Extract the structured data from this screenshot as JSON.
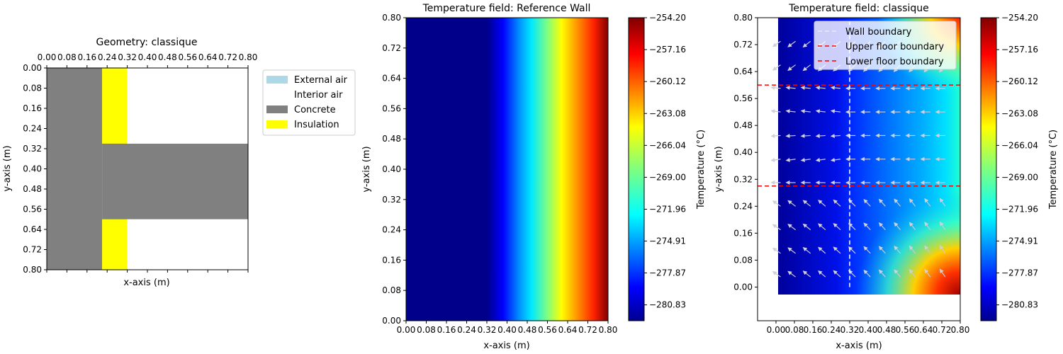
{
  "chart_data": [
    {
      "type": "heatmap",
      "title": "Geometry: classique",
      "xlabel": "x-axis (m)",
      "ylabel": "y-axis (m)",
      "xlim": [
        0.0,
        0.8
      ],
      "ylim": [
        0.8,
        0.0
      ],
      "y_inverted": true,
      "x_ticks_position": "top",
      "tick_labels": [
        "0.00",
        "0.08",
        "0.16",
        "0.24",
        "0.32",
        "0.40",
        "0.48",
        "0.56",
        "0.64",
        "0.72",
        "0.80"
      ],
      "regions": [
        {
          "material": "Concrete",
          "x": [
            0.0,
            0.22
          ],
          "y": [
            0.0,
            0.8
          ]
        },
        {
          "material": "Insulation",
          "x": [
            0.22,
            0.32
          ],
          "y": [
            0.0,
            0.3
          ]
        },
        {
          "material": "Insulation",
          "x": [
            0.22,
            0.32
          ],
          "y": [
            0.6,
            0.8
          ]
        },
        {
          "material": "Concrete",
          "x": [
            0.22,
            0.8
          ],
          "y": [
            0.3,
            0.6
          ]
        },
        {
          "material": "Interior air",
          "x": [
            0.32,
            0.8
          ],
          "y": [
            0.0,
            0.3
          ]
        },
        {
          "material": "Interior air",
          "x": [
            0.32,
            0.8
          ],
          "y": [
            0.6,
            0.8
          ]
        }
      ],
      "legend": {
        "placement": "outside right",
        "entries": [
          {
            "label": "External air",
            "color": "#add8e6"
          },
          {
            "label": "Interior air",
            "color": "#ffffff"
          },
          {
            "label": "Concrete",
            "color": "#808080"
          },
          {
            "label": "Insulation",
            "color": "#ffff00"
          }
        ]
      }
    },
    {
      "type": "heatmap",
      "title": "Temperature field: Reference Wall",
      "xlabel": "x-axis (m)",
      "ylabel": "y-axis (m)",
      "xlim": [
        0.0,
        0.8
      ],
      "ylim": [
        0.0,
        0.8
      ],
      "tick_labels": [
        "0.00",
        "0.08",
        "0.16",
        "0.24",
        "0.32",
        "0.40",
        "0.48",
        "0.56",
        "0.64",
        "0.72",
        "0.80"
      ],
      "colormap": "jet",
      "temperature_range": [
        -282.3,
        -254.2
      ],
      "profile_x": [
        0.0,
        0.32,
        0.4,
        0.48,
        0.56,
        0.64,
        0.72,
        0.8
      ],
      "profile_T": [
        -282.3,
        -282.3,
        -279.0,
        -274.0,
        -268.5,
        -263.5,
        -259.0,
        -254.2
      ],
      "colorbar": {
        "label": "Temperature (°C)",
        "ticks": [
          "-254.20",
          "-257.16",
          "-260.12",
          "-263.08",
          "-266.04",
          "-269.00",
          "-271.96",
          "-274.91",
          "-277.87",
          "-280.83"
        ]
      }
    },
    {
      "type": "heatmap",
      "title": "Temperature field: classique",
      "xlabel": "x-axis (m)",
      "ylabel": "y-axis (m)",
      "xlim": [
        -0.08,
        0.8
      ],
      "ylim": [
        -0.1,
        0.8
      ],
      "field_extent": {
        "x": [
          0.0,
          0.8
        ],
        "y": [
          0.0,
          0.8
        ]
      },
      "tick_labels": [
        "0.00",
        "0.08",
        "0.16",
        "0.24",
        "0.32",
        "0.40",
        "0.48",
        "0.56",
        "0.64",
        "0.72",
        "0.80"
      ],
      "colormap": "jet",
      "temperature_range": [
        -282.3,
        -254.2
      ],
      "lines": [
        {
          "label": "Wall boundary",
          "orientation": "vertical",
          "value": 0.32,
          "color": "#ffffff",
          "style": "dashed"
        },
        {
          "label": "Upper floor boundary",
          "orientation": "horizontal",
          "value": 0.6,
          "color": "#ff0000",
          "style": "dashed"
        },
        {
          "label": "Lower floor boundary",
          "orientation": "horizontal",
          "value": 0.3,
          "color": "#ff0000",
          "style": "dashed"
        }
      ],
      "legend": {
        "placement": "upper right"
      },
      "colorbar": {
        "label": "Temperature (°C)",
        "ticks": [
          "-254.20",
          "-257.16",
          "-260.12",
          "-263.08",
          "-266.04",
          "-269.00",
          "-271.96",
          "-274.91",
          "-277.87",
          "-280.83"
        ]
      }
    }
  ]
}
